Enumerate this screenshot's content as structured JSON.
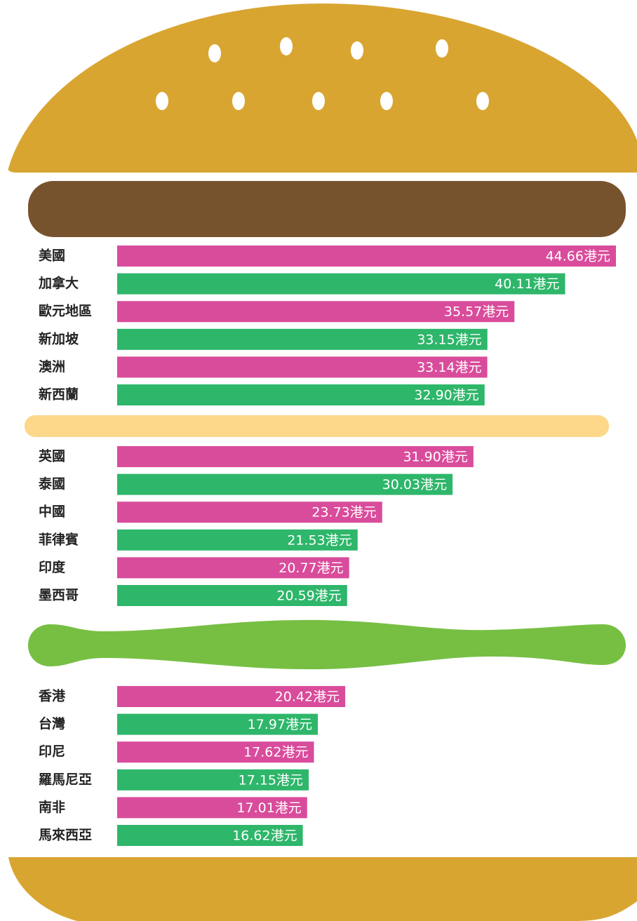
{
  "chart_data": {
    "type": "bar",
    "categories": [
      "美國",
      "加拿大",
      "歐元地區",
      "新加坡",
      "澳洲",
      "新西蘭",
      "英國",
      "泰國",
      "中國",
      "菲律賓",
      "印度",
      "墨西哥",
      "香港",
      "台灣",
      "印尼",
      "羅馬尼亞",
      "南非",
      "馬來西亞"
    ],
    "values": [
      44.66,
      40.11,
      35.57,
      33.15,
      33.14,
      32.9,
      31.9,
      30.03,
      23.73,
      21.53,
      20.77,
      20.59,
      20.42,
      17.97,
      17.62,
      17.15,
      17.01,
      16.62
    ],
    "value_labels": [
      "44.66港元",
      "40.11港元",
      "35.57港元",
      "33.15港元",
      "33.14港元",
      "32.90港元",
      "31.90港元",
      "30.03港元",
      "23.73港元",
      "21.53港元",
      "20.77港元",
      "20.59港元",
      "20.42港元",
      "17.97港元",
      "17.62港元",
      "17.15港元",
      "17.01港元",
      "16.62港元"
    ],
    "colors": [
      "#d94c9b",
      "#2eb66a",
      "#d94c9b",
      "#2eb66a",
      "#d94c9b",
      "#2eb66a",
      "#d94c9b",
      "#2eb66a",
      "#d94c9b",
      "#2eb66a",
      "#d94c9b",
      "#2eb66a",
      "#d94c9b",
      "#2eb66a",
      "#d94c9b",
      "#2eb66a",
      "#d94c9b",
      "#2eb66a"
    ]
  }
}
